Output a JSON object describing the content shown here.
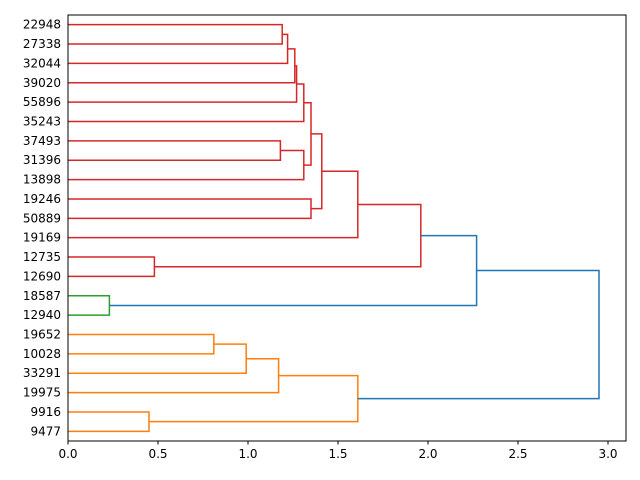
{
  "chart_data": {
    "type": "dendrogram",
    "orientation": "right",
    "title": "",
    "xlabel": "",
    "ylabel": "",
    "xlim": [
      0,
      3.1
    ],
    "xticks": [
      0.0,
      0.5,
      1.0,
      1.5,
      2.0,
      2.5,
      3.0
    ],
    "xtick_labels": [
      "0.0",
      "0.5",
      "1.0",
      "1.5",
      "2.0",
      "2.5",
      "3.0"
    ],
    "colors": {
      "above_threshold": "#1f77b4",
      "cluster_red": "#d62728",
      "cluster_green": "#2ca02c",
      "cluster_orange": "#ff7f0e"
    },
    "leaves": [
      "22948",
      "27338",
      "32044",
      "39020",
      "55896",
      "35243",
      "37493",
      "31396",
      "13898",
      "19246",
      "50889",
      "19169",
      "12735",
      "12690",
      "18587",
      "12940",
      "19652",
      "10028",
      "33291",
      "19975",
      "9916",
      "9477"
    ],
    "merges": [
      {
        "id": "m1",
        "left": "22948",
        "right": "27338",
        "height": 1.19,
        "color": "cluster_red"
      },
      {
        "id": "m2",
        "left": "m1",
        "right": "32044",
        "height": 1.22,
        "color": "cluster_red"
      },
      {
        "id": "m3",
        "left": "m2",
        "right": "39020",
        "height": 1.26,
        "color": "cluster_red"
      },
      {
        "id": "m4",
        "left": "m3",
        "right": "55896",
        "height": 1.27,
        "color": "cluster_red"
      },
      {
        "id": "m5",
        "left": "m4",
        "right": "35243",
        "height": 1.31,
        "color": "cluster_red"
      },
      {
        "id": "m6",
        "left": "37493",
        "right": "31396",
        "height": 1.18,
        "color": "cluster_red"
      },
      {
        "id": "m7",
        "left": "m6",
        "right": "13898",
        "height": 1.31,
        "color": "cluster_red"
      },
      {
        "id": "m8",
        "left": "m5",
        "right": "m7",
        "height": 1.35,
        "color": "cluster_red"
      },
      {
        "id": "m9",
        "left": "19246",
        "right": "50889",
        "height": 1.35,
        "color": "cluster_red"
      },
      {
        "id": "m10",
        "left": "m8",
        "right": "m9",
        "height": 1.41,
        "color": "cluster_red"
      },
      {
        "id": "m11",
        "left": "m10",
        "right": "19169",
        "height": 1.61,
        "color": "cluster_red"
      },
      {
        "id": "m12",
        "left": "12735",
        "right": "12690",
        "height": 0.48,
        "color": "cluster_red"
      },
      {
        "id": "m13",
        "left": "m11",
        "right": "m12",
        "height": 1.96,
        "color": "cluster_red"
      },
      {
        "id": "m14",
        "left": "18587",
        "right": "12940",
        "height": 0.23,
        "color": "cluster_green"
      },
      {
        "id": "m15",
        "left": "m13",
        "right": "m14",
        "height": 2.27,
        "color": "above_threshold"
      },
      {
        "id": "m16",
        "left": "19652",
        "right": "10028",
        "height": 0.81,
        "color": "cluster_orange"
      },
      {
        "id": "m17",
        "left": "m16",
        "right": "33291",
        "height": 0.99,
        "color": "cluster_orange"
      },
      {
        "id": "m18",
        "left": "m17",
        "right": "19975",
        "height": 1.17,
        "color": "cluster_orange"
      },
      {
        "id": "m19",
        "left": "9916",
        "right": "9477",
        "height": 0.45,
        "color": "cluster_orange"
      },
      {
        "id": "m20",
        "left": "m18",
        "right": "m19",
        "height": 1.61,
        "color": "cluster_orange"
      },
      {
        "id": "m21",
        "left": "m15",
        "right": "m20",
        "height": 2.95,
        "color": "above_threshold"
      }
    ]
  }
}
